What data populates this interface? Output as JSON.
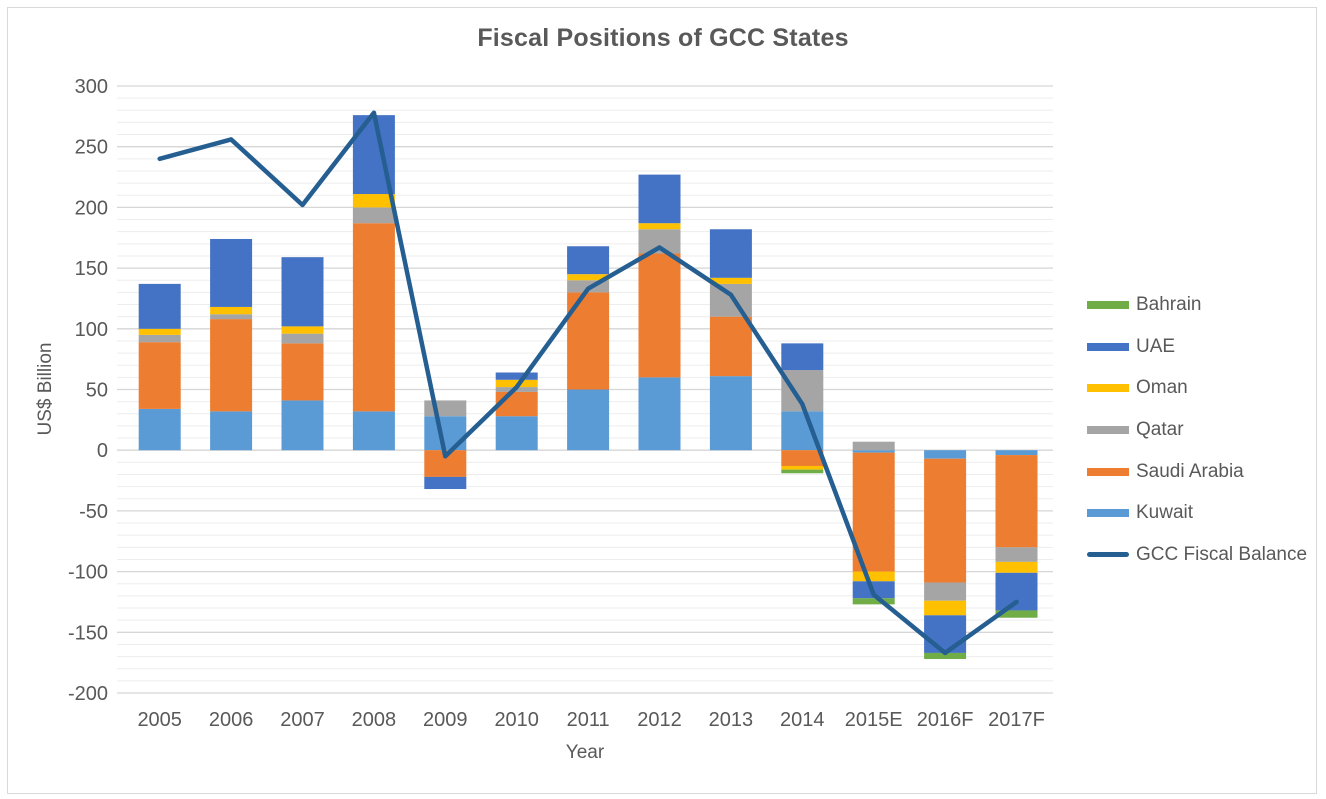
{
  "title": "Fiscal Positions of GCC States",
  "chart_data": {
    "type": "bar",
    "subtype": "stacked-bar-with-line-overlay",
    "categories": [
      "2005",
      "2006",
      "2007",
      "2008",
      "2009",
      "2010",
      "2011",
      "2012",
      "2013",
      "2014",
      "2015E",
      "2016F",
      "2017F"
    ],
    "series": [
      {
        "name": "Kuwait",
        "type": "bar",
        "color": "#5B9BD5",
        "values": [
          34,
          32,
          41,
          32,
          28,
          28,
          50,
          60,
          61,
          32,
          -2,
          -7,
          -4
        ]
      },
      {
        "name": "Saudi Arabia",
        "type": "bar",
        "color": "#ED7D31",
        "values": [
          55,
          76,
          47,
          155,
          -22,
          20,
          80,
          102,
          49,
          -13,
          -98,
          -102,
          -76
        ]
      },
      {
        "name": "Qatar",
        "type": "bar",
        "color": "#A5A5A5",
        "values": [
          6,
          4,
          8,
          13,
          13,
          4,
          10,
          20,
          27,
          34,
          7,
          -15,
          -12
        ]
      },
      {
        "name": "Oman",
        "type": "bar",
        "color": "#FFC000",
        "values": [
          5,
          6,
          6,
          11,
          0,
          6,
          5,
          5,
          5,
          -3,
          -8,
          -12,
          -9
        ]
      },
      {
        "name": "UAE",
        "type": "bar",
        "color": "#4472C4",
        "values": [
          37,
          56,
          57,
          65,
          -10,
          6,
          23,
          40,
          40,
          22,
          -14,
          -31,
          -31
        ]
      },
      {
        "name": "Bahrain",
        "type": "bar",
        "color": "#70AD47",
        "values": [
          0,
          0,
          0,
          0,
          0,
          0,
          0,
          0,
          0,
          -3,
          -5,
          -5,
          -6
        ]
      },
      {
        "name": "GCC Fiscal Balance",
        "type": "line",
        "color": "#255E91",
        "values": [
          240,
          256,
          202,
          278,
          -5,
          52,
          133,
          167,
          128,
          38,
          -119,
          -167,
          -125
        ]
      }
    ],
    "stack_order_bottom_to_top": [
      "Kuwait",
      "Saudi Arabia",
      "Qatar",
      "Oman",
      "UAE",
      "Bahrain"
    ],
    "legend": [
      "Bahrain",
      "UAE",
      "Oman",
      "Qatar",
      "Saudi Arabia",
      "Kuwait",
      "GCC Fiscal Balance"
    ],
    "legend_position": "right",
    "xlabel": "Year",
    "ylabel": "US$ Billion",
    "ylim": [
      -200,
      300
    ],
    "yticks": [
      300,
      250,
      200,
      150,
      100,
      50,
      0,
      -50,
      -100,
      -150,
      -200
    ],
    "ytick_step": 50,
    "minor_gridline_step": 10,
    "grid": "on",
    "colors": {
      "text": "#595959",
      "grid_major": "#d6d6d6",
      "grid_minor": "#ededed",
      "frame_border": "#d9d9d9",
      "background": "#ffffff"
    }
  }
}
